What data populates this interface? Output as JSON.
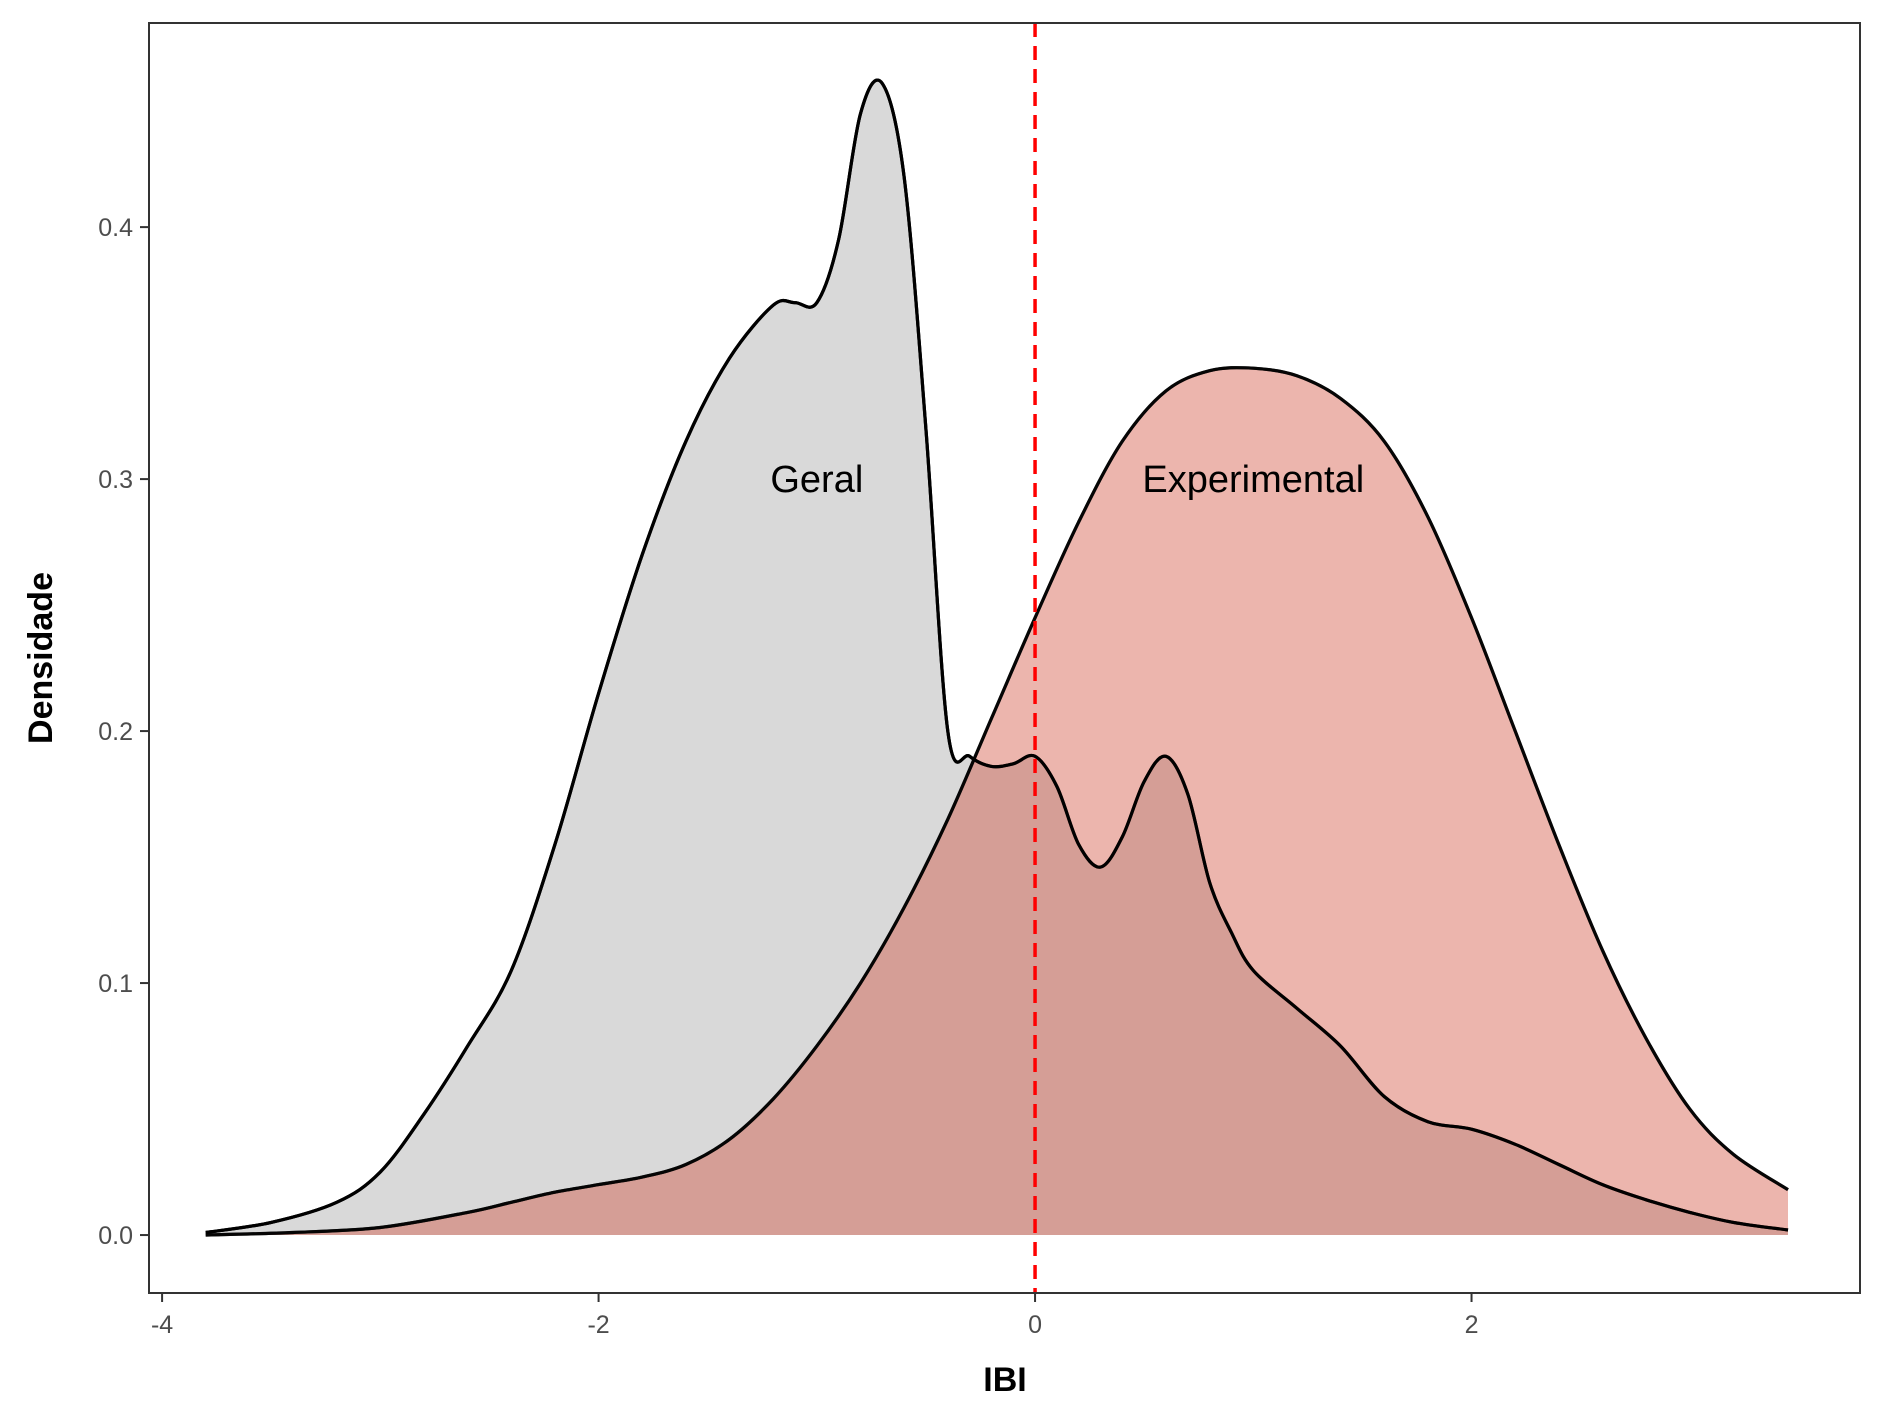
{
  "chart_data": {
    "type": "area",
    "xlabel": "IBI",
    "ylabel": "Densidade",
    "xlim": [
      -4.06,
      3.78
    ],
    "ylim": [
      -0.023,
      0.481
    ],
    "x_ticks": [
      -4,
      -2,
      0,
      2
    ],
    "x_tick_labels": [
      "-4",
      "-2",
      "0",
      "2"
    ],
    "y_ticks": [
      0.0,
      0.1,
      0.2,
      0.3,
      0.4
    ],
    "y_tick_labels": [
      "0.0",
      "0.1",
      "0.2",
      "0.3",
      "0.4"
    ],
    "grid": false,
    "legend": "none",
    "reference_line": {
      "x": 0,
      "color": "#ff0000",
      "style": "dashed"
    },
    "series": [
      {
        "name": "Geral",
        "fill": "#d9d9d9",
        "x": [
          -3.8,
          -3.5,
          -3.2,
          -3.0,
          -2.8,
          -2.6,
          -2.4,
          -2.2,
          -2.0,
          -1.8,
          -1.6,
          -1.4,
          -1.2,
          -1.1,
          -1.0,
          -0.9,
          -0.8,
          -0.7,
          -0.6,
          -0.5,
          -0.4,
          -0.3,
          -0.2,
          -0.1,
          0.0,
          0.1,
          0.2,
          0.3,
          0.4,
          0.5,
          0.6,
          0.7,
          0.8,
          0.9,
          1.0,
          1.2,
          1.4,
          1.6,
          1.8,
          2.0,
          2.2,
          2.4,
          2.6,
          2.8,
          3.0,
          3.2,
          3.45
        ],
        "y": [
          0.001,
          0.005,
          0.013,
          0.025,
          0.048,
          0.075,
          0.105,
          0.155,
          0.215,
          0.27,
          0.315,
          0.348,
          0.369,
          0.37,
          0.37,
          0.395,
          0.445,
          0.457,
          0.42,
          0.32,
          0.2,
          0.19,
          0.186,
          0.187,
          0.19,
          0.178,
          0.155,
          0.146,
          0.158,
          0.18,
          0.19,
          0.175,
          0.14,
          0.12,
          0.105,
          0.09,
          0.075,
          0.055,
          0.045,
          0.042,
          0.036,
          0.028,
          0.02,
          0.014,
          0.009,
          0.005,
          0.002
        ]
      },
      {
        "name": "Experimental",
        "fill": "#d0473266",
        "x": [
          -3.8,
          -3.4,
          -3.0,
          -2.6,
          -2.4,
          -2.2,
          -2.0,
          -1.8,
          -1.6,
          -1.4,
          -1.2,
          -1.0,
          -0.8,
          -0.6,
          -0.4,
          -0.2,
          0.0,
          0.2,
          0.4,
          0.6,
          0.8,
          1.0,
          1.2,
          1.4,
          1.6,
          1.8,
          2.0,
          2.2,
          2.4,
          2.6,
          2.8,
          3.0,
          3.2,
          3.45
        ],
        "y": [
          0.0,
          0.001,
          0.003,
          0.009,
          0.013,
          0.017,
          0.02,
          0.023,
          0.028,
          0.038,
          0.054,
          0.075,
          0.1,
          0.13,
          0.165,
          0.205,
          0.245,
          0.283,
          0.315,
          0.335,
          0.343,
          0.344,
          0.341,
          0.332,
          0.315,
          0.285,
          0.245,
          0.2,
          0.155,
          0.113,
          0.078,
          0.05,
          0.032,
          0.018
        ]
      }
    ],
    "annotations": [
      {
        "text": "Geral",
        "x": -1.0,
        "y": 0.3
      },
      {
        "text": "Experimental",
        "x": 1.0,
        "y": 0.3
      }
    ]
  }
}
